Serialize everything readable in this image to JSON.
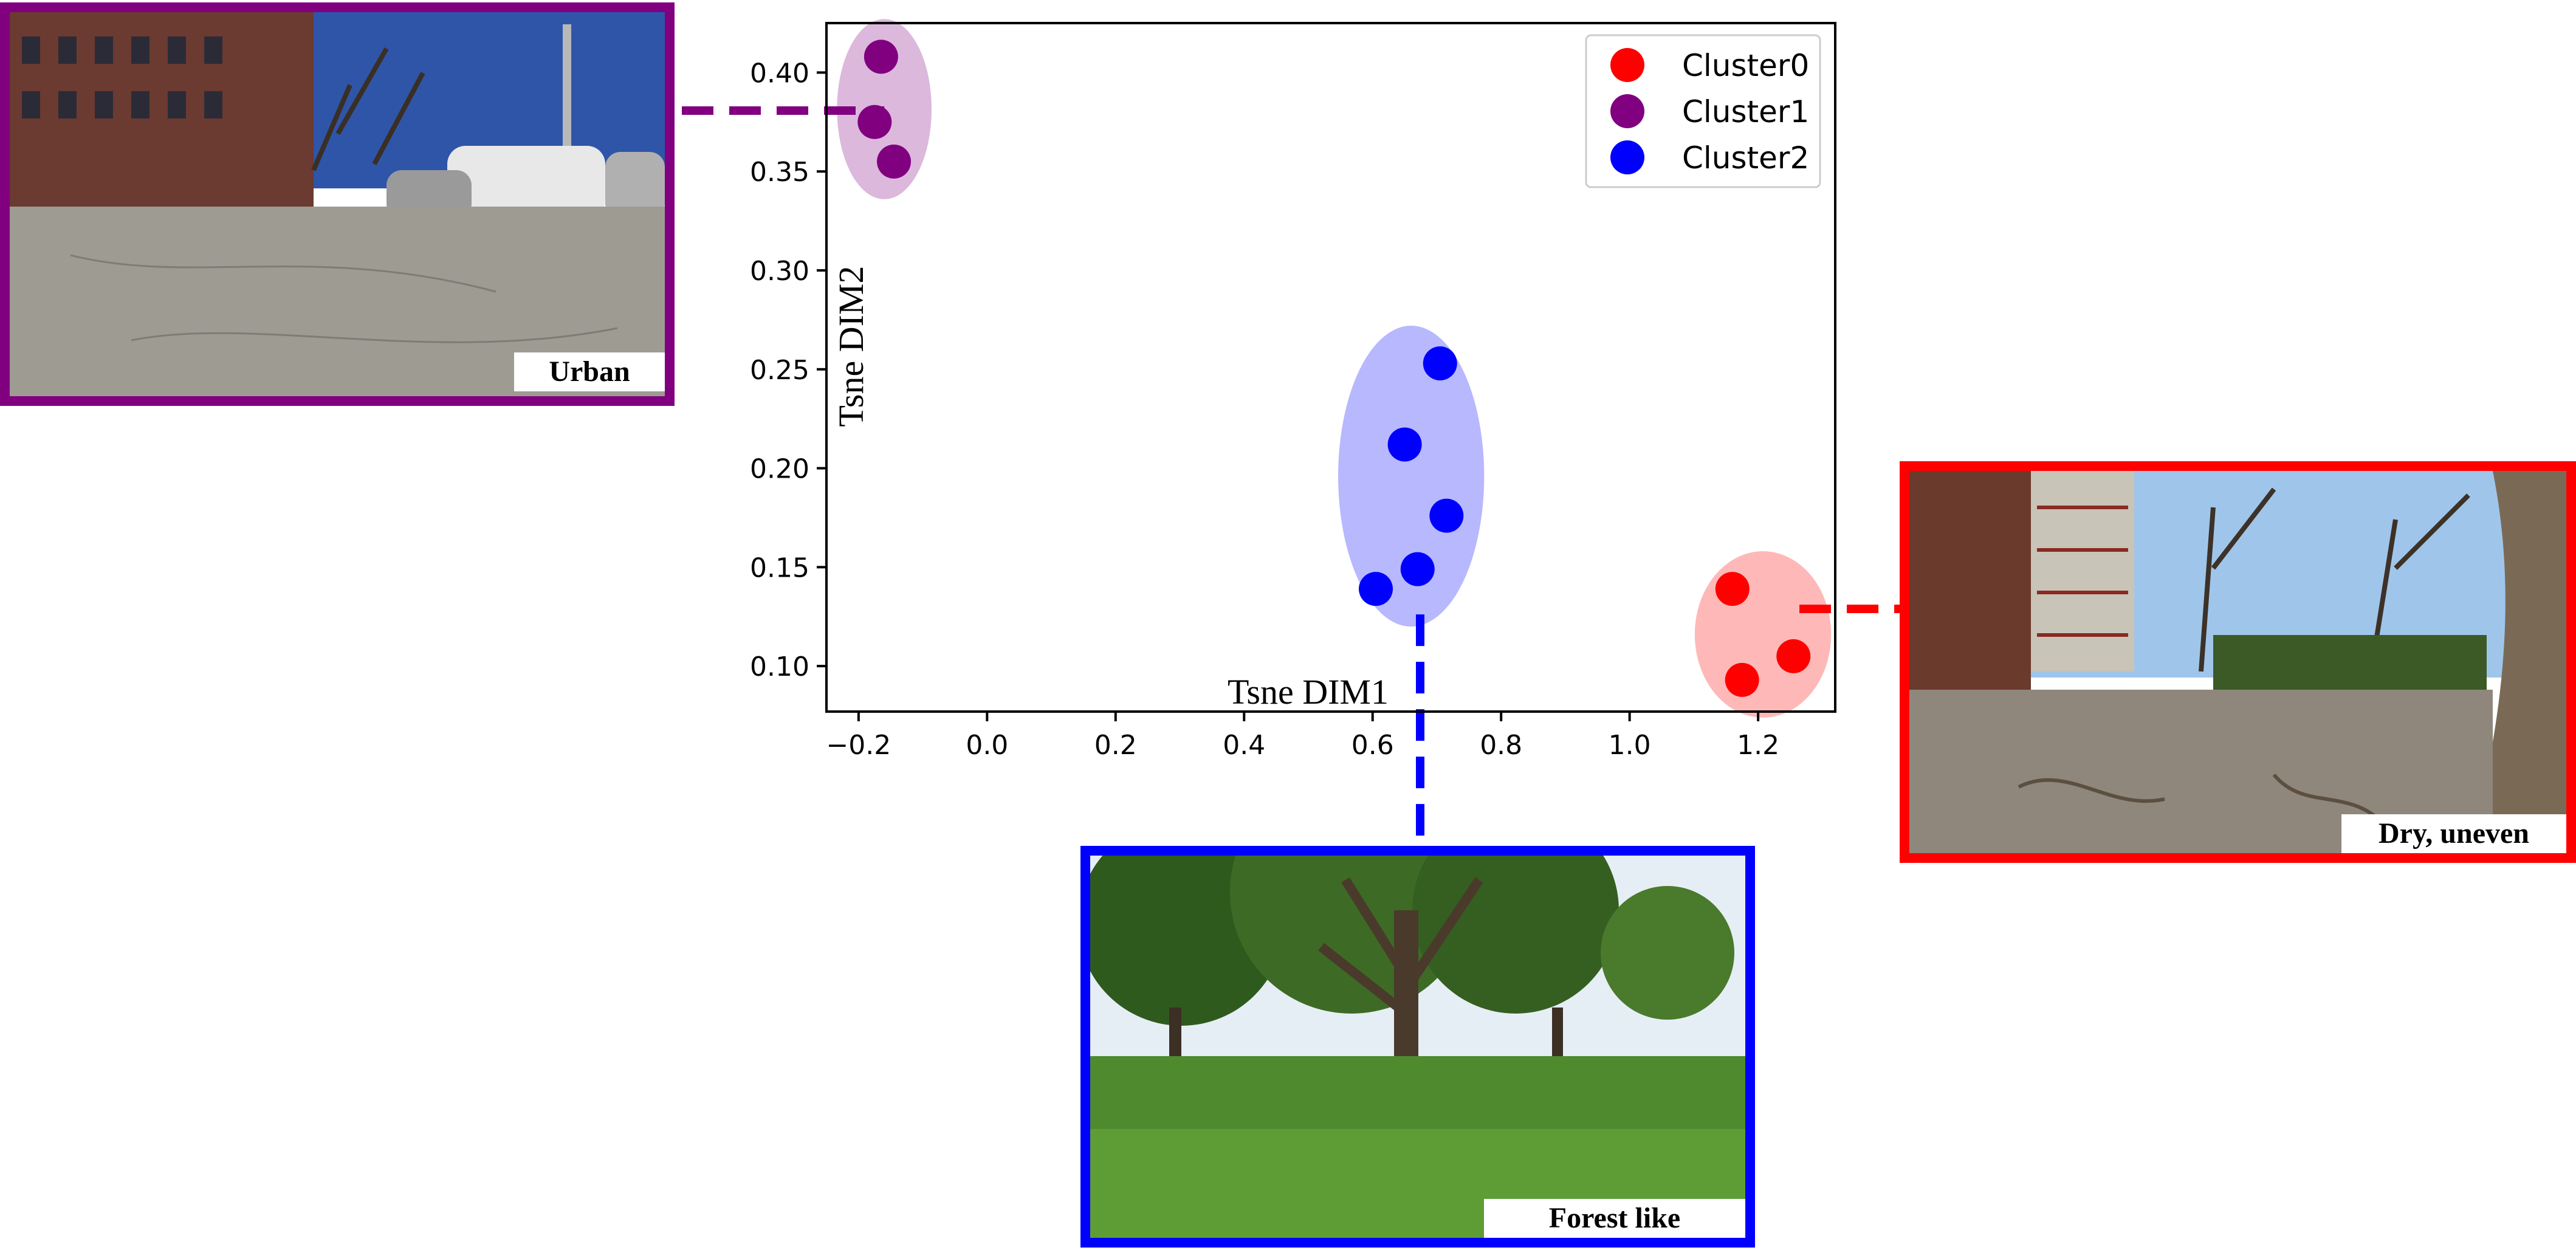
{
  "chart_data": {
    "type": "scatter",
    "title": "",
    "xlabel": "Tsne DIM1",
    "ylabel": "Tsne DIM2",
    "xlim": [
      -0.25,
      1.32
    ],
    "ylim": [
      0.077,
      0.425
    ],
    "xticks": [
      "−0.2",
      "0.0",
      "0.2",
      "0.4",
      "0.6",
      "0.8",
      "1.0",
      "1.2"
    ],
    "xtick_values": [
      -0.2,
      0.0,
      0.2,
      0.4,
      0.6,
      0.8,
      1.0,
      1.2
    ],
    "yticks": [
      "0.10",
      "0.15",
      "0.20",
      "0.25",
      "0.30",
      "0.35",
      "0.40"
    ],
    "ytick_values": [
      0.1,
      0.15,
      0.2,
      0.25,
      0.3,
      0.35,
      0.4
    ],
    "grid": false,
    "legend_position": "top-right",
    "series": [
      {
        "name": "Cluster0",
        "color": "#ff0000",
        "x": [
          1.16,
          1.255,
          1.175
        ],
        "y": [
          0.139,
          0.105,
          0.093
        ]
      },
      {
        "name": "Cluster1",
        "color": "#800080",
        "x": [
          -0.165,
          -0.175,
          -0.145
        ],
        "y": [
          0.408,
          0.375,
          0.355
        ]
      },
      {
        "name": "Cluster2",
        "color": "#0000ff",
        "x": [
          0.705,
          0.65,
          0.715,
          0.67,
          0.605
        ],
        "y": [
          0.253,
          0.212,
          0.176,
          0.149,
          0.139
        ]
      }
    ]
  },
  "images": [
    {
      "caption": "Urban",
      "cluster": "Cluster1",
      "color": "#800080"
    },
    {
      "caption": "Forest like",
      "cluster": "Cluster2",
      "color": "#0000ff"
    },
    {
      "caption": "Dry, uneven",
      "cluster": "Cluster0",
      "color": "#ff0000"
    }
  ]
}
